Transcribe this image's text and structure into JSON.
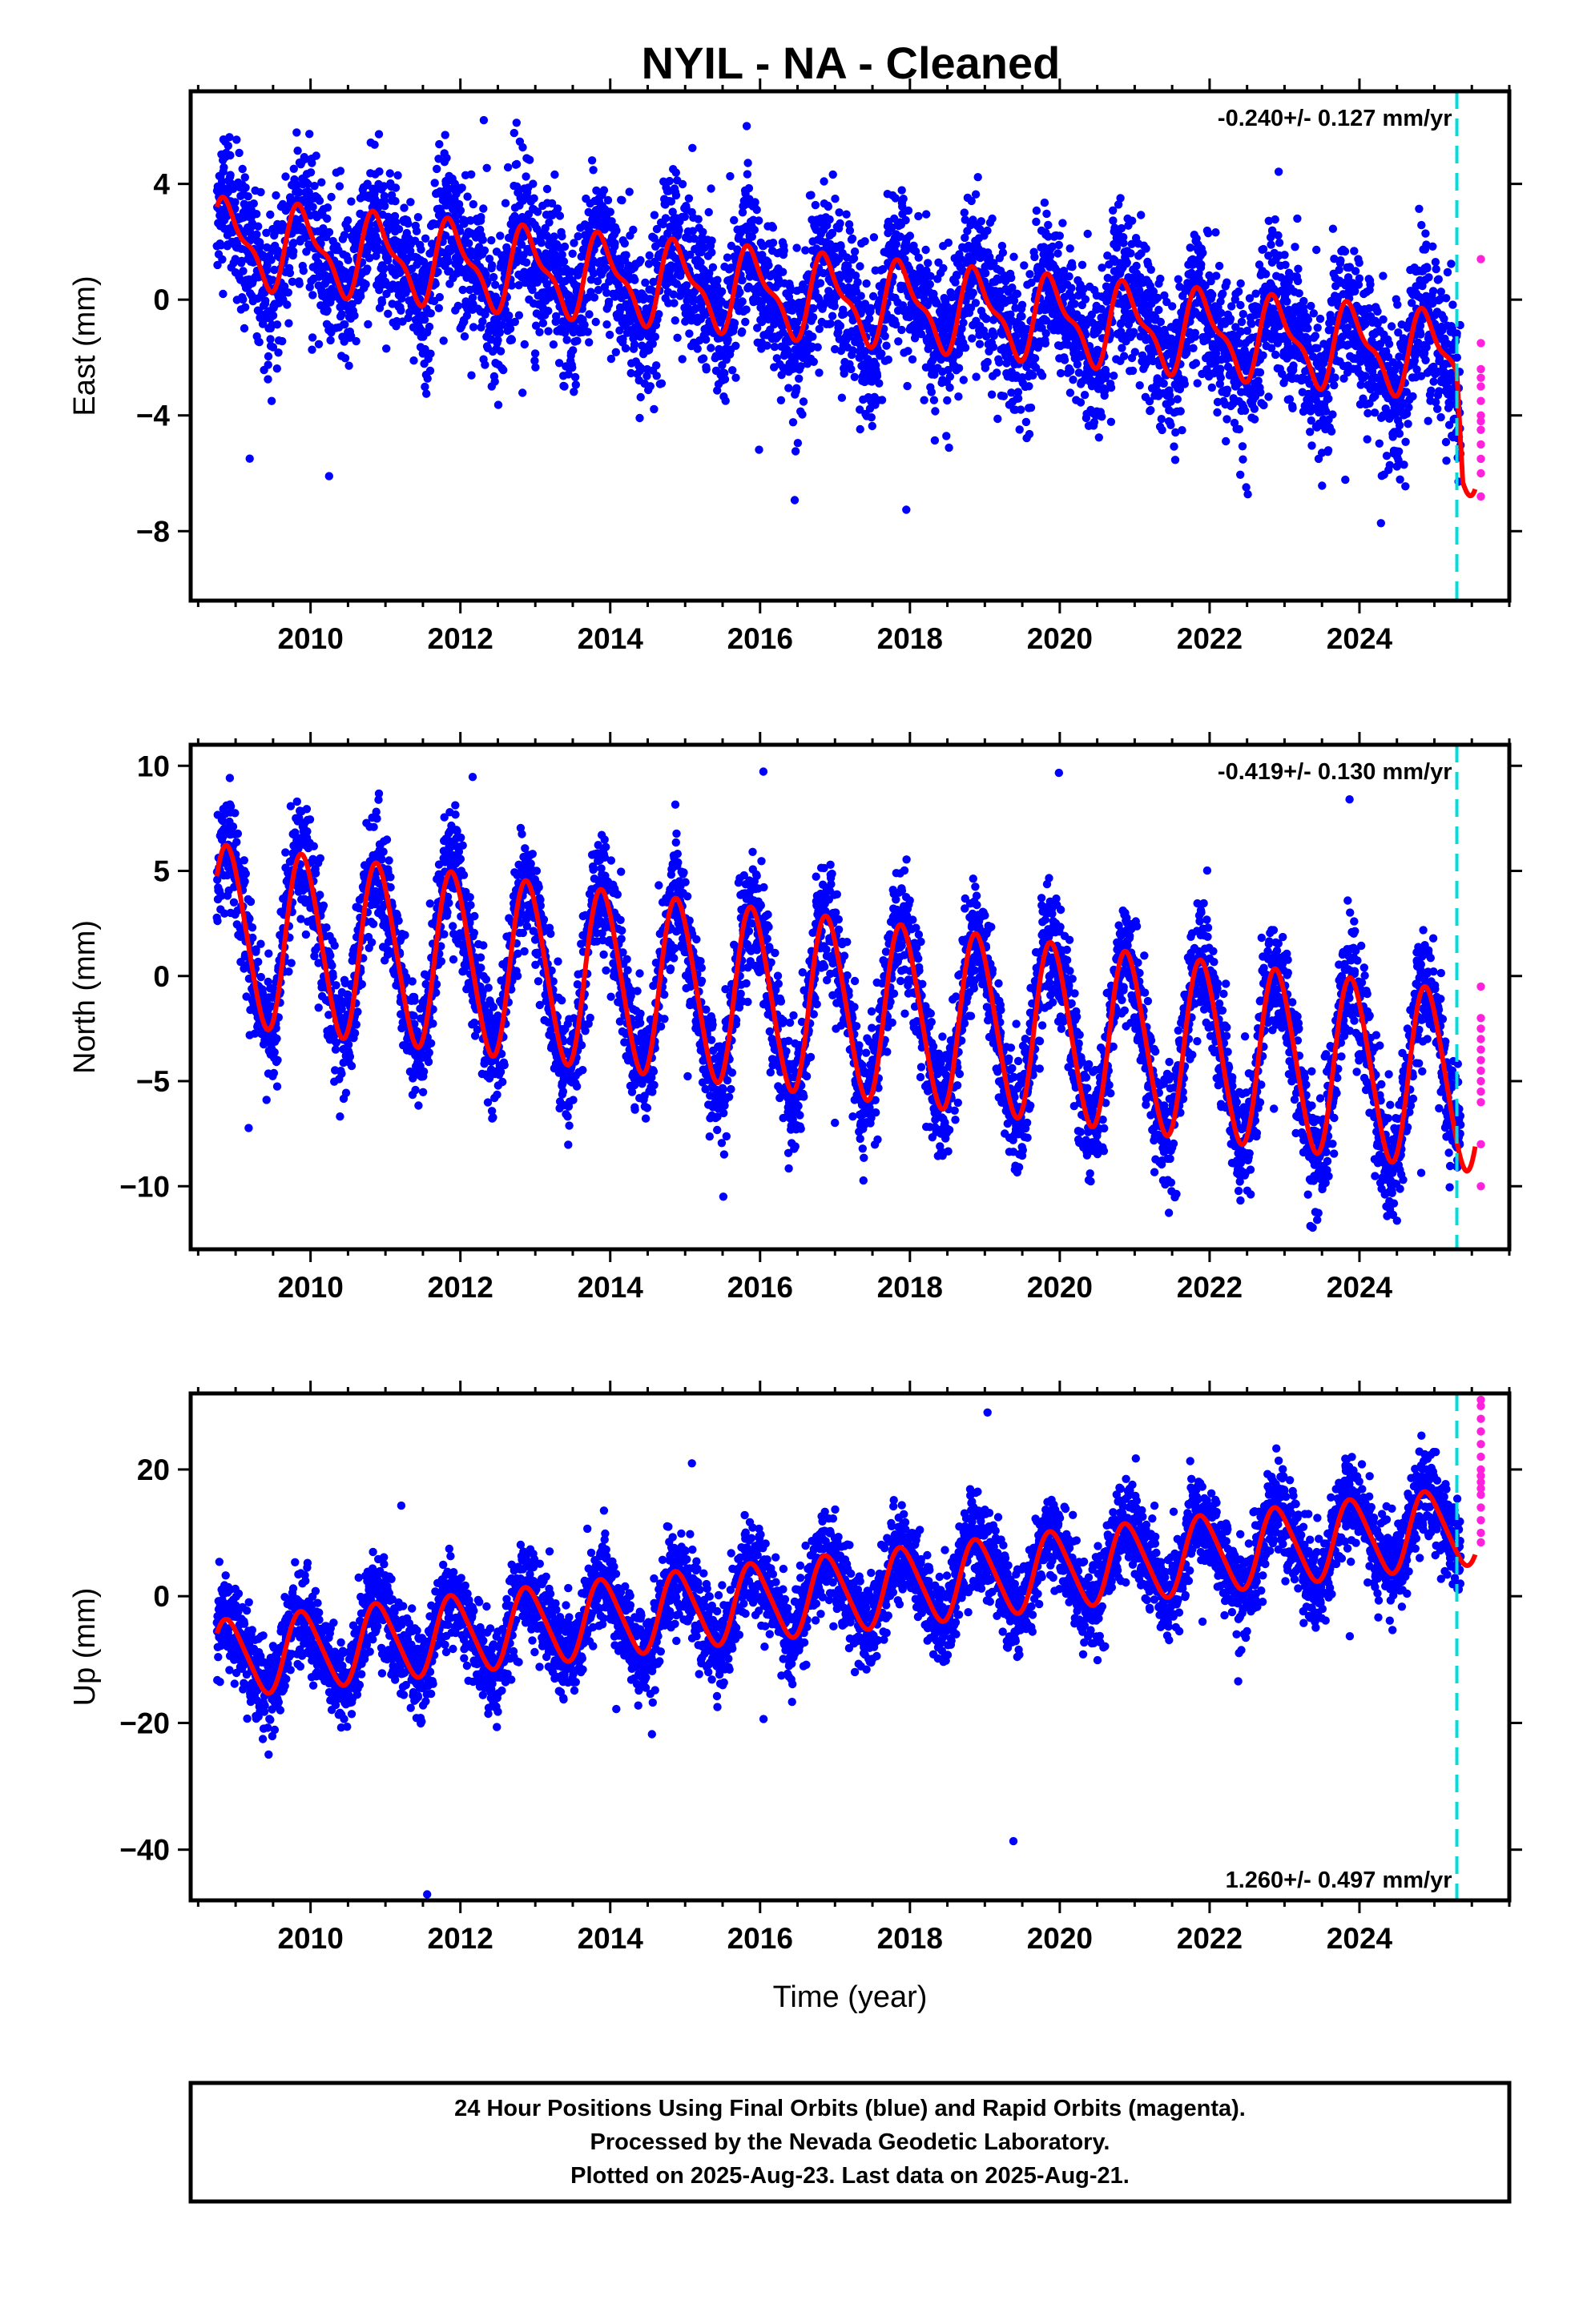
{
  "title": "NYIL  - NA - Cleaned",
  "colors": {
    "final_points": "#0000ff",
    "rapid_points": "#ff22dd",
    "model_line": "#ff0000",
    "marker_line": "#00dddd",
    "frame": "#000000"
  },
  "chart_data": [
    {
      "type": "scatter",
      "panel": "east",
      "xlabel": "",
      "ylabel": "East (mm)",
      "xlim": [
        2008.4,
        2026.0
      ],
      "ylim": [
        -10.4,
        7.2
      ],
      "xticks": [
        2010,
        2012,
        2014,
        2016,
        2018,
        2020,
        2022,
        2024
      ],
      "yticks": [
        4,
        0,
        -4,
        -8
      ],
      "rate": "-0.240+/- 0.127 mm/yr",
      "rate_position": "top-right",
      "marker_x": 2025.3,
      "series": [
        {
          "values_model": {
            "start": 2008.75,
            "end": 2025.55,
            "offset_at_start": 2.0,
            "trend_mm_per_yr": -0.24,
            "annual_amplitude": 1.3,
            "semiannual_amplitude": 0.5,
            "late_offset": -3.2,
            "late_offset_start": 2025.3
          },
          "scatter_sigma": 1.3,
          "rapid_values": [
            1.4,
            -1.5,
            -2.4,
            -3.0,
            -3.5,
            -4.0,
            -4.5,
            -5.0,
            -5.5,
            -6.0,
            -6.8,
            -4.2,
            -2.7
          ]
        }
      ]
    },
    {
      "type": "scatter",
      "panel": "north",
      "xlabel": "",
      "ylabel": "North (mm)",
      "xlim": [
        2008.4,
        2026.0
      ],
      "ylim": [
        -13.0,
        11.0
      ],
      "xticks": [
        2010,
        2012,
        2014,
        2016,
        2018,
        2020,
        2022,
        2024
      ],
      "yticks": [
        10,
        5,
        0,
        -5,
        -10
      ],
      "rate": "-0.419+/- 0.130 mm/yr",
      "rate_position": "top-right",
      "marker_x": 2025.3,
      "series": [
        {
          "values_model": {
            "start": 2008.75,
            "end": 2025.55,
            "offset_at_start": 2.0,
            "trend_mm_per_yr": -0.42,
            "annual_amplitude": 4.2,
            "semiannual_amplitude": 0.4
          },
          "scatter_sigma": 1.4,
          "rapid_values": [
            -0.5,
            -2.5,
            -3.0,
            -3.5,
            -4.0,
            -4.5,
            -5.0,
            -5.5,
            -6.0,
            -8.0,
            -10.0,
            -2.0
          ]
        }
      ]
    },
    {
      "type": "scatter",
      "panel": "up",
      "xlabel": "Time (year)",
      "ylabel": "Up (mm)",
      "xlim": [
        2008.4,
        2026.0
      ],
      "ylim": [
        -48.0,
        32.0
      ],
      "xticks": [
        2010,
        2012,
        2014,
        2016,
        2018,
        2020,
        2022,
        2024
      ],
      "yticks": [
        20,
        0,
        -20,
        -40
      ],
      "rate": "1.260+/- 0.497 mm/yr",
      "rate_position": "bottom-right",
      "marker_x": 2025.3,
      "series": [
        {
          "values_model": {
            "start": 2008.75,
            "end": 2025.55,
            "offset_at_start": -10.0,
            "trend_mm_per_yr": 1.26,
            "annual_amplitude": 6.0,
            "semiannual_amplitude": 0.8
          },
          "scatter_sigma": 3.5,
          "rapid_values": [
            8.5,
            10.0,
            12.0,
            14.0,
            16.0,
            18.0,
            20.0,
            22.0,
            24.0,
            26.0,
            28.0,
            30.0,
            31.0,
            19.0,
            17.0
          ]
        }
      ]
    }
  ],
  "footer": {
    "line1": "24 Hour Positions Using Final Orbits (blue) and Rapid Orbits (magenta).",
    "line2": "Processed by the Nevada Geodetic Laboratory.",
    "line3": "Plotted on 2025-Aug-23. Last data on 2025-Aug-21."
  }
}
